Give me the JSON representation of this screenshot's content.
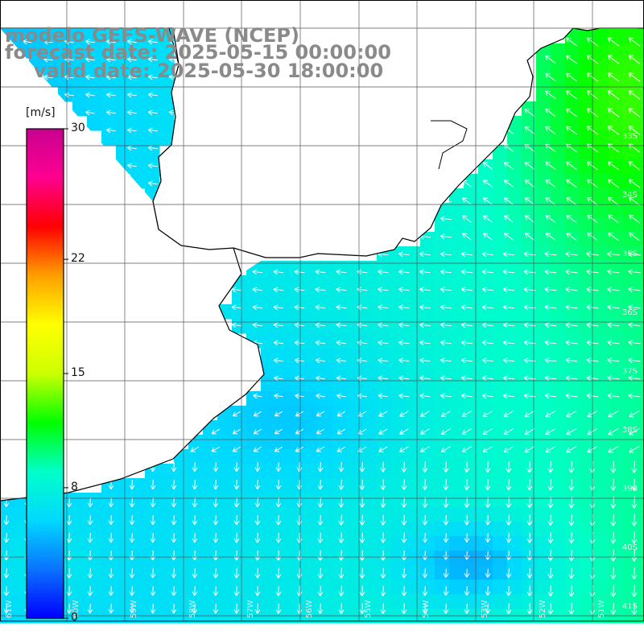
{
  "title": {
    "model": "modelo GEFS-WAVE (NCEP)",
    "forecast": "forecast date: 2025-05-15 00:00:00",
    "valid": "valid date: 2025-05-30 18:00:00"
  },
  "colorbar": {
    "unit": "[m/s]",
    "min": 0,
    "max": 30,
    "ticks": [
      {
        "value": 30,
        "label": "30"
      },
      {
        "value": 22,
        "label": "22"
      },
      {
        "value": 15,
        "label": "15"
      },
      {
        "value": 8,
        "label": "8"
      },
      {
        "value": 0,
        "label": "0"
      }
    ],
    "colors": [
      "#0000ff",
      "#0a73ff",
      "#00d9ff",
      "#00ffc8",
      "#00ff00",
      "#ccff00",
      "#ffff00",
      "#ffa000",
      "#ff0000",
      "#ff0090",
      "#c80090"
    ]
  },
  "map": {
    "variable": "wind speed and direction",
    "lon_labels": [
      "61W",
      "60W",
      "59W",
      "58W",
      "57W",
      "56W",
      "55W",
      "54W",
      "53W",
      "52W",
      "51W"
    ],
    "lat_labels": [
      "33S",
      "34S",
      "35S",
      "36S",
      "37S",
      "38S",
      "39S",
      "40S",
      "41S"
    ],
    "colors": {
      "land": "#ffffff",
      "coast": "#000000",
      "grid": "#555555",
      "arrow": "#ffffff"
    }
  }
}
